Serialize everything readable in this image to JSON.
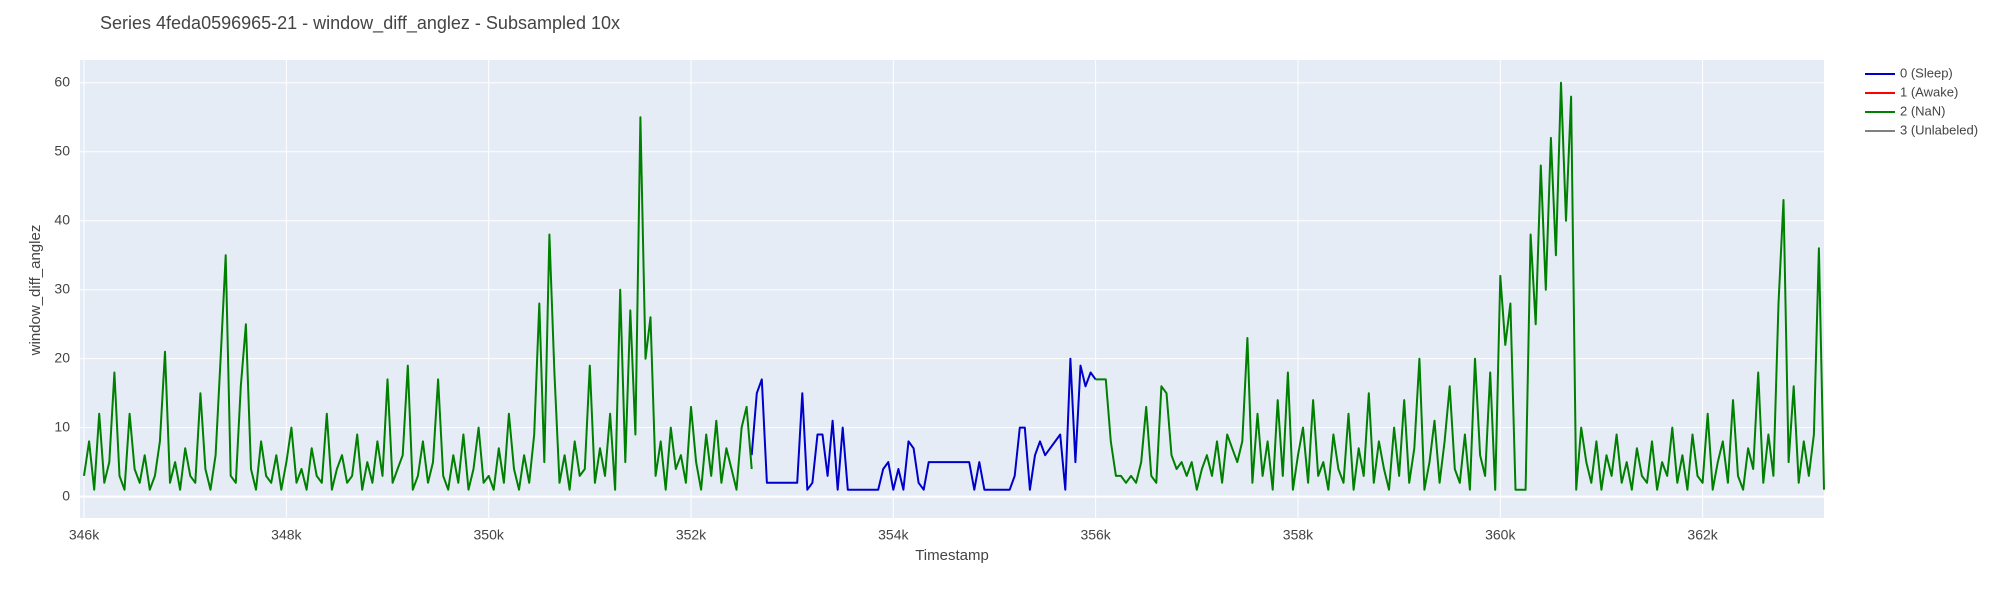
{
  "chart_data": {
    "type": "line",
    "title": "Series 4feda0596965-21 - window_diff_anglez - Subsampled 10x",
    "x_label": "Timestamp",
    "y_label": "window_diff_anglez",
    "xlim": [
      345960,
      363200
    ],
    "xticks": [
      {
        "value": 346000,
        "label": "346k"
      },
      {
        "value": 348000,
        "label": "348k"
      },
      {
        "value": 350000,
        "label": "350k"
      },
      {
        "value": 352000,
        "label": "352k"
      },
      {
        "value": 354000,
        "label": "354k"
      },
      {
        "value": 356000,
        "label": "356k"
      },
      {
        "value": 358000,
        "label": "358k"
      },
      {
        "value": 360000,
        "label": "360k"
      },
      {
        "value": 362000,
        "label": "362k"
      }
    ],
    "ylim": [
      -3.1,
      63.3
    ],
    "yticks": [
      0,
      10,
      20,
      30,
      40,
      50,
      60
    ],
    "grid": true,
    "series": [
      {
        "name": "0 (Sleep)",
        "color": "#0000cd",
        "x": [
          352600,
          352650,
          352700,
          352750,
          352800,
          352850,
          352900,
          352950,
          353000,
          353050,
          353100,
          353150,
          353200,
          353250,
          353300,
          353350,
          353400,
          353450,
          353500,
          353550,
          353600,
          353650,
          353700,
          353750,
          353800,
          353850,
          353900,
          353950,
          354000,
          354050,
          354100,
          354150,
          354200,
          354250,
          354300,
          354350,
          354400,
          354450,
          354500,
          354550,
          354600,
          354650,
          354700,
          354750,
          354800,
          354850,
          354900,
          354950,
          355000,
          355050,
          355100,
          355150,
          355200,
          355250,
          355300,
          355350,
          355400,
          355450,
          355500,
          355550,
          355600,
          355650,
          355700,
          355750,
          355800,
          355850,
          355900,
          355950,
          356000
        ],
        "values": [
          6,
          15,
          17,
          2,
          2,
          2,
          2,
          2,
          2,
          2,
          15,
          1,
          2,
          9,
          9,
          3,
          11,
          1,
          10,
          1,
          1,
          1,
          1,
          1,
          1,
          1,
          4,
          5,
          1,
          4,
          1,
          8,
          7,
          2,
          1,
          5,
          5,
          5,
          5,
          5,
          5,
          5,
          5,
          5,
          1,
          5,
          1,
          1,
          1,
          1,
          1,
          1,
          3,
          10,
          10,
          1,
          6,
          8,
          6,
          7,
          8,
          9,
          1,
          20,
          5,
          19,
          16,
          18,
          17
        ]
      },
      {
        "name": "1 (Awake)",
        "color": "#ff0000",
        "x": [],
        "values": []
      },
      {
        "name": "2 (NaN)",
        "color": "#008000",
        "x": [
          346000,
          346050,
          346100,
          346150,
          346200,
          346250,
          346300,
          346350,
          346400,
          346450,
          346500,
          346550,
          346600,
          346650,
          346700,
          346750,
          346800,
          346850,
          346900,
          346950,
          347000,
          347050,
          347100,
          347150,
          347200,
          347250,
          347300,
          347350,
          347400,
          347450,
          347500,
          347550,
          347600,
          347650,
          347700,
          347750,
          347800,
          347850,
          347900,
          347950,
          348000,
          348050,
          348100,
          348150,
          348200,
          348250,
          348300,
          348350,
          348400,
          348450,
          348500,
          348550,
          348600,
          348650,
          348700,
          348750,
          348800,
          348850,
          348900,
          348950,
          349000,
          349050,
          349100,
          349150,
          349200,
          349250,
          349300,
          349350,
          349400,
          349450,
          349500,
          349550,
          349600,
          349650,
          349700,
          349750,
          349800,
          349850,
          349900,
          349950,
          350000,
          350050,
          350100,
          350150,
          350200,
          350250,
          350300,
          350350,
          350400,
          350450,
          350500,
          350550,
          350600,
          350650,
          350700,
          350750,
          350800,
          350850,
          350900,
          350950,
          351000,
          351050,
          351100,
          351150,
          351200,
          351250,
          351300,
          351350,
          351400,
          351450,
          351500,
          351550,
          351600,
          351650,
          351700,
          351750,
          351800,
          351850,
          351900,
          351950,
          352000,
          352050,
          352100,
          352150,
          352200,
          352250,
          352300,
          352350,
          352400,
          352450,
          352500,
          352550,
          352600,
          352650,
          356000,
          356050,
          356100,
          356150,
          356200,
          356250,
          356300,
          356350,
          356400,
          356450,
          356500,
          356550,
          356600,
          356650,
          356700,
          356750,
          356800,
          356850,
          356900,
          356950,
          357000,
          357050,
          357100,
          357150,
          357200,
          357250,
          357300,
          357350,
          357400,
          357450,
          357500,
          357550,
          357600,
          357650,
          357700,
          357750,
          357800,
          357850,
          357900,
          357950,
          358000,
          358050,
          358100,
          358150,
          358200,
          358250,
          358300,
          358350,
          358400,
          358450,
          358500,
          358550,
          358600,
          358650,
          358700,
          358750,
          358800,
          358850,
          358900,
          358950,
          359000,
          359050,
          359100,
          359150,
          359200,
          359250,
          359300,
          359350,
          359400,
          359450,
          359500,
          359550,
          359600,
          359650,
          359700,
          359750,
          359800,
          359850,
          359900,
          359950,
          360000,
          360050,
          360100,
          360150,
          360200,
          360250,
          360300,
          360350,
          360400,
          360450,
          360500,
          360550,
          360600,
          360650,
          360700,
          360750,
          360800,
          360850,
          360900,
          360950,
          361000,
          361050,
          361100,
          361150,
          361200,
          361250,
          361300,
          361350,
          361400,
          361450,
          361500,
          361550,
          361600,
          361650,
          361700,
          361750,
          361800,
          361850,
          361900,
          361950,
          362000,
          362050,
          362100,
          362150,
          362200,
          362250,
          362300,
          362350,
          362400,
          362450,
          362500,
          362550,
          362600,
          362650,
          362700,
          362750,
          362800,
          362850,
          362900,
          362950,
          363000,
          363050,
          363100,
          363150,
          363200
        ],
        "values": [
          3,
          8,
          1,
          12,
          2,
          5,
          18,
          3,
          1,
          12,
          4,
          2,
          6,
          1,
          3,
          8,
          21,
          2,
          5,
          1,
          7,
          3,
          2,
          15,
          4,
          1,
          6,
          20,
          35,
          3,
          2,
          16,
          25,
          4,
          1,
          8,
          3,
          2,
          6,
          1,
          5,
          10,
          2,
          4,
          1,
          7,
          3,
          2,
          12,
          1,
          4,
          6,
          2,
          3,
          9,
          1,
          5,
          2,
          8,
          3,
          17,
          2,
          4,
          6,
          19,
          1,
          3,
          8,
          2,
          5,
          17,
          3,
          1,
          6,
          2,
          9,
          1,
          4,
          10,
          2,
          3,
          1,
          7,
          2,
          12,
          4,
          1,
          6,
          2,
          9,
          28,
          5,
          38,
          18,
          2,
          6,
          1,
          8,
          3,
          4,
          19,
          2,
          7,
          3,
          12,
          1,
          30,
          5,
          27,
          9,
          55,
          20,
          26,
          3,
          8,
          1,
          10,
          4,
          6,
          2,
          13,
          5,
          1,
          9,
          3,
          11,
          2,
          7,
          4,
          1,
          10,
          13,
          4,
          null,
          17,
          17,
          17,
          8,
          3,
          3,
          2,
          3,
          2,
          5,
          13,
          3,
          2,
          16,
          15,
          6,
          4,
          5,
          3,
          5,
          1,
          4,
          6,
          3,
          8,
          2,
          9,
          7,
          5,
          8,
          23,
          2,
          12,
          3,
          8,
          1,
          14,
          3,
          18,
          1,
          6,
          10,
          2,
          14,
          3,
          5,
          1,
          9,
          4,
          2,
          12,
          1,
          7,
          3,
          15,
          2,
          8,
          4,
          1,
          10,
          3,
          14,
          2,
          7,
          20,
          1,
          5,
          11,
          2,
          8,
          16,
          4,
          2,
          9,
          1,
          20,
          6,
          3,
          18,
          1,
          32,
          22,
          28,
          1,
          1,
          1,
          38,
          25,
          48,
          30,
          52,
          35,
          60,
          40,
          58,
          1,
          10,
          5,
          2,
          8,
          1,
          6,
          3,
          9,
          2,
          5,
          1,
          7,
          3,
          2,
          8,
          1,
          5,
          3,
          10,
          2,
          6,
          1,
          9,
          3,
          2,
          12,
          1,
          5,
          8,
          2,
          14,
          3,
          1,
          7,
          4,
          18,
          2,
          9,
          3,
          28,
          43,
          5,
          16,
          2,
          8,
          3,
          9,
          36,
          1
        ]
      },
      {
        "name": "3 (Unlabeled)",
        "color": "#808080",
        "x": [],
        "values": []
      }
    ]
  }
}
